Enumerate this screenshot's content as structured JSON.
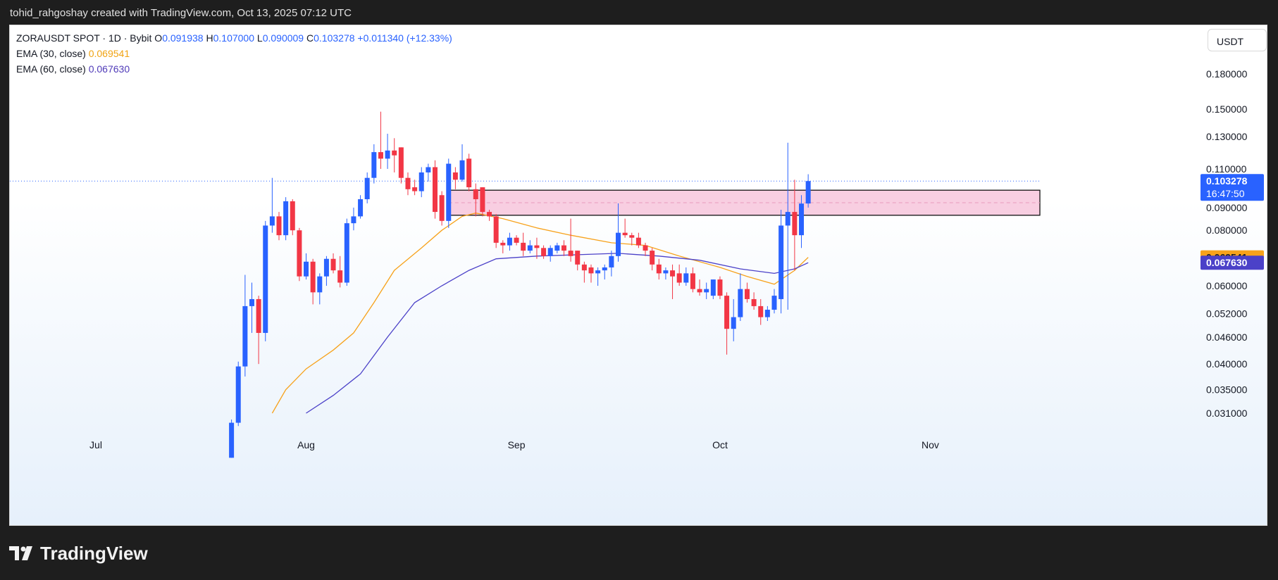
{
  "caption": "tohid_rahgoshay created with TradingView.com, Oct 13, 2025 07:12 UTC",
  "brand": "TradingView",
  "currency_button": "USDT",
  "legend": {
    "symbol": "ZORAUSDT SPOT · 1D · Bybit",
    "o_label": "O",
    "o_value": "0.091938",
    "h_label": "H",
    "h_value": "0.107000",
    "l_label": "L",
    "l_value": "0.090009",
    "c_label": "C",
    "c_value": "0.103278",
    "change": "+0.011340 (+12.33%)",
    "ema30_label": "EMA (30, close)",
    "ema30_value": "0.069541",
    "ema60_label": "EMA (60, close)",
    "ema60_value": "0.067630"
  },
  "colors": {
    "up": "#2962ff",
    "down": "#f23645",
    "ema30": "#f7a21b",
    "ema60": "#4b41c8",
    "zone_fill": "#f7c6dc"
  },
  "chart_data": {
    "type": "candlestick",
    "symbol": "ZORAUSDT SPOT",
    "timeframe": "1D",
    "exchange": "Bybit",
    "y_scale": "log",
    "y_ticks": [
      "0.180000",
      "0.150000",
      "0.130000",
      "0.110000",
      "0.090000",
      "0.080000",
      "0.060000",
      "0.052000",
      "0.046000",
      "0.040000",
      "0.035000",
      "0.031000"
    ],
    "x_ticks": [
      "Jul",
      "Aug",
      "Sep",
      "Oct",
      "Nov"
    ],
    "last_price_label": "0.103278",
    "countdown_label": "16:47:50",
    "ema30_label": "0.069541",
    "ema60_label": "0.067630",
    "zone": {
      "start": "2025-08-22",
      "end": "2025-11-21",
      "low": 0.0865,
      "high": 0.0985
    },
    "candles": [
      {
        "d": "2025-07-21",
        "o": 0.0246,
        "h": 0.03,
        "l": 0.0246,
        "c": 0.0295
      },
      {
        "d": "2025-07-22",
        "o": 0.0295,
        "h": 0.0405,
        "l": 0.029,
        "c": 0.0395
      },
      {
        "d": "2025-07-23",
        "o": 0.0395,
        "h": 0.0635,
        "l": 0.0375,
        "c": 0.054
      },
      {
        "d": "2025-07-24",
        "o": 0.054,
        "h": 0.061,
        "l": 0.047,
        "c": 0.056
      },
      {
        "d": "2025-07-25",
        "o": 0.056,
        "h": 0.057,
        "l": 0.04,
        "c": 0.047
      },
      {
        "d": "2025-07-26",
        "o": 0.047,
        "h": 0.084,
        "l": 0.045,
        "c": 0.082
      },
      {
        "d": "2025-07-27",
        "o": 0.082,
        "h": 0.105,
        "l": 0.079,
        "c": 0.086
      },
      {
        "d": "2025-07-28",
        "o": 0.086,
        "h": 0.088,
        "l": 0.076,
        "c": 0.078
      },
      {
        "d": "2025-07-29",
        "o": 0.078,
        "h": 0.095,
        "l": 0.076,
        "c": 0.093
      },
      {
        "d": "2025-07-30",
        "o": 0.093,
        "h": 0.094,
        "l": 0.078,
        "c": 0.08
      },
      {
        "d": "2025-07-31",
        "o": 0.08,
        "h": 0.081,
        "l": 0.0615,
        "c": 0.063
      },
      {
        "d": "2025-08-01",
        "o": 0.063,
        "h": 0.071,
        "l": 0.062,
        "c": 0.068
      },
      {
        "d": "2025-08-02",
        "o": 0.068,
        "h": 0.069,
        "l": 0.0545,
        "c": 0.058
      },
      {
        "d": "2025-08-03",
        "o": 0.058,
        "h": 0.064,
        "l": 0.0545,
        "c": 0.063
      },
      {
        "d": "2025-08-04",
        "o": 0.063,
        "h": 0.07,
        "l": 0.06,
        "c": 0.069
      },
      {
        "d": "2025-08-05",
        "o": 0.069,
        "h": 0.071,
        "l": 0.064,
        "c": 0.065
      },
      {
        "d": "2025-08-06",
        "o": 0.065,
        "h": 0.07,
        "l": 0.0595,
        "c": 0.061
      },
      {
        "d": "2025-08-07",
        "o": 0.061,
        "h": 0.085,
        "l": 0.06,
        "c": 0.083
      },
      {
        "d": "2025-08-08",
        "o": 0.083,
        "h": 0.09,
        "l": 0.08,
        "c": 0.086
      },
      {
        "d": "2025-08-09",
        "o": 0.086,
        "h": 0.096,
        "l": 0.085,
        "c": 0.094
      },
      {
        "d": "2025-08-10",
        "o": 0.094,
        "h": 0.108,
        "l": 0.092,
        "c": 0.105
      },
      {
        "d": "2025-08-11",
        "o": 0.105,
        "h": 0.125,
        "l": 0.102,
        "c": 0.12
      },
      {
        "d": "2025-08-12",
        "o": 0.12,
        "h": 0.148,
        "l": 0.11,
        "c": 0.116
      },
      {
        "d": "2025-08-13",
        "o": 0.116,
        "h": 0.132,
        "l": 0.11,
        "c": 0.121
      },
      {
        "d": "2025-08-14",
        "o": 0.121,
        "h": 0.129,
        "l": 0.108,
        "c": 0.118
      },
      {
        "d": "2025-08-15",
        "o": 0.123,
        "h": 0.123,
        "l": 0.102,
        "c": 0.105
      },
      {
        "d": "2025-08-16",
        "o": 0.105,
        "h": 0.108,
        "l": 0.096,
        "c": 0.099
      },
      {
        "d": "2025-08-17",
        "o": 0.1,
        "h": 0.104,
        "l": 0.096,
        "c": 0.098
      },
      {
        "d": "2025-08-18",
        "o": 0.098,
        "h": 0.111,
        "l": 0.095,
        "c": 0.108
      },
      {
        "d": "2025-08-19",
        "o": 0.108,
        "h": 0.113,
        "l": 0.103,
        "c": 0.111
      },
      {
        "d": "2025-08-20",
        "o": 0.111,
        "h": 0.115,
        "l": 0.085,
        "c": 0.088
      },
      {
        "d": "2025-08-21",
        "o": 0.096,
        "h": 0.098,
        "l": 0.082,
        "c": 0.084
      },
      {
        "d": "2025-08-22",
        "o": 0.084,
        "h": 0.116,
        "l": 0.081,
        "c": 0.113
      },
      {
        "d": "2025-08-23",
        "o": 0.108,
        "h": 0.111,
        "l": 0.099,
        "c": 0.104
      },
      {
        "d": "2025-08-24",
        "o": 0.104,
        "h": 0.125,
        "l": 0.103,
        "c": 0.115
      },
      {
        "d": "2025-08-25",
        "o": 0.116,
        "h": 0.119,
        "l": 0.098,
        "c": 0.1
      },
      {
        "d": "2025-08-26",
        "o": 0.099,
        "h": 0.102,
        "l": 0.086,
        "c": 0.094
      },
      {
        "d": "2025-08-27",
        "o": 0.1,
        "h": 0.1,
        "l": 0.086,
        "c": 0.088
      },
      {
        "d": "2025-08-28",
        "o": 0.088,
        "h": 0.089,
        "l": 0.084,
        "c": 0.086
      },
      {
        "d": "2025-08-29",
        "o": 0.086,
        "h": 0.087,
        "l": 0.073,
        "c": 0.075
      },
      {
        "d": "2025-08-30",
        "o": 0.075,
        "h": 0.076,
        "l": 0.071,
        "c": 0.074
      },
      {
        "d": "2025-08-31",
        "o": 0.074,
        "h": 0.079,
        "l": 0.072,
        "c": 0.077
      },
      {
        "d": "2025-09-01",
        "o": 0.077,
        "h": 0.078,
        "l": 0.074,
        "c": 0.075
      },
      {
        "d": "2025-09-02",
        "o": 0.075,
        "h": 0.079,
        "l": 0.07,
        "c": 0.072
      },
      {
        "d": "2025-09-03",
        "o": 0.072,
        "h": 0.076,
        "l": 0.071,
        "c": 0.074
      },
      {
        "d": "2025-09-04",
        "o": 0.074,
        "h": 0.077,
        "l": 0.069,
        "c": 0.073
      },
      {
        "d": "2025-09-05",
        "o": 0.073,
        "h": 0.074,
        "l": 0.069,
        "c": 0.07
      },
      {
        "d": "2025-09-06",
        "o": 0.07,
        "h": 0.074,
        "l": 0.068,
        "c": 0.073
      },
      {
        "d": "2025-09-07",
        "o": 0.072,
        "h": 0.075,
        "l": 0.071,
        "c": 0.074
      },
      {
        "d": "2025-09-08",
        "o": 0.074,
        "h": 0.076,
        "l": 0.07,
        "c": 0.072
      },
      {
        "d": "2025-09-09",
        "o": 0.072,
        "h": 0.085,
        "l": 0.068,
        "c": 0.07
      },
      {
        "d": "2025-09-10",
        "o": 0.072,
        "h": 0.072,
        "l": 0.065,
        "c": 0.067
      },
      {
        "d": "2025-09-11",
        "o": 0.067,
        "h": 0.068,
        "l": 0.061,
        "c": 0.065
      },
      {
        "d": "2025-09-12",
        "o": 0.066,
        "h": 0.067,
        "l": 0.061,
        "c": 0.064
      },
      {
        "d": "2025-09-13",
        "o": 0.064,
        "h": 0.066,
        "l": 0.06,
        "c": 0.065
      },
      {
        "d": "2025-09-14",
        "o": 0.065,
        "h": 0.067,
        "l": 0.062,
        "c": 0.066
      },
      {
        "d": "2025-09-15",
        "o": 0.066,
        "h": 0.072,
        "l": 0.063,
        "c": 0.07
      },
      {
        "d": "2025-09-16",
        "o": 0.07,
        "h": 0.092,
        "l": 0.068,
        "c": 0.079
      },
      {
        "d": "2025-09-17",
        "o": 0.079,
        "h": 0.085,
        "l": 0.077,
        "c": 0.078
      },
      {
        "d": "2025-09-18",
        "o": 0.078,
        "h": 0.079,
        "l": 0.074,
        "c": 0.077
      },
      {
        "d": "2025-09-19",
        "o": 0.077,
        "h": 0.079,
        "l": 0.073,
        "c": 0.074
      },
      {
        "d": "2025-09-20",
        "o": 0.074,
        "h": 0.075,
        "l": 0.07,
        "c": 0.072
      },
      {
        "d": "2025-09-21",
        "o": 0.072,
        "h": 0.073,
        "l": 0.065,
        "c": 0.067
      },
      {
        "d": "2025-09-22",
        "o": 0.067,
        "h": 0.069,
        "l": 0.062,
        "c": 0.064
      },
      {
        "d": "2025-09-23",
        "o": 0.064,
        "h": 0.066,
        "l": 0.062,
        "c": 0.065
      },
      {
        "d": "2025-09-24",
        "o": 0.065,
        "h": 0.067,
        "l": 0.056,
        "c": 0.063
      },
      {
        "d": "2025-09-25",
        "o": 0.064,
        "h": 0.067,
        "l": 0.06,
        "c": 0.061
      },
      {
        "d": "2025-09-26",
        "o": 0.061,
        "h": 0.066,
        "l": 0.06,
        "c": 0.064
      },
      {
        "d": "2025-09-27",
        "o": 0.064,
        "h": 0.066,
        "l": 0.058,
        "c": 0.059
      },
      {
        "d": "2025-09-28",
        "o": 0.059,
        "h": 0.062,
        "l": 0.057,
        "c": 0.058
      },
      {
        "d": "2025-09-29",
        "o": 0.058,
        "h": 0.061,
        "l": 0.056,
        "c": 0.059
      },
      {
        "d": "2025-09-30",
        "o": 0.057,
        "h": 0.062,
        "l": 0.056,
        "c": 0.062
      },
      {
        "d": "2025-10-01",
        "o": 0.062,
        "h": 0.063,
        "l": 0.056,
        "c": 0.057
      },
      {
        "d": "2025-10-02",
        "o": 0.057,
        "h": 0.058,
        "l": 0.042,
        "c": 0.048
      },
      {
        "d": "2025-10-03",
        "o": 0.048,
        "h": 0.056,
        "l": 0.045,
        "c": 0.051
      },
      {
        "d": "2025-10-04",
        "o": 0.051,
        "h": 0.064,
        "l": 0.05,
        "c": 0.059
      },
      {
        "d": "2025-10-05",
        "o": 0.059,
        "h": 0.061,
        "l": 0.055,
        "c": 0.056
      },
      {
        "d": "2025-10-06",
        "o": 0.056,
        "h": 0.058,
        "l": 0.053,
        "c": 0.054
      },
      {
        "d": "2025-10-07",
        "o": 0.054,
        "h": 0.056,
        "l": 0.049,
        "c": 0.051
      },
      {
        "d": "2025-10-08",
        "o": 0.051,
        "h": 0.054,
        "l": 0.05,
        "c": 0.053
      },
      {
        "d": "2025-10-09",
        "o": 0.053,
        "h": 0.059,
        "l": 0.052,
        "c": 0.057
      },
      {
        "d": "2025-10-10",
        "o": 0.056,
        "h": 0.089,
        "l": 0.052,
        "c": 0.082
      },
      {
        "d": "2025-10-11",
        "o": 0.082,
        "h": 0.126,
        "l": 0.053,
        "c": 0.088
      },
      {
        "d": "2025-10-12",
        "o": 0.088,
        "h": 0.104,
        "l": 0.065,
        "c": 0.078
      },
      {
        "d": "2025-10-13",
        "o": 0.078,
        "h": 0.096,
        "l": 0.073,
        "c": 0.0919
      },
      {
        "d": "2025-10-14",
        "o": 0.091938,
        "h": 0.107,
        "l": 0.090009,
        "c": 0.103278
      }
    ],
    "ema30": [
      {
        "d": "2025-07-27",
        "v": 0.031
      },
      {
        "d": "2025-07-29",
        "v": 0.035
      },
      {
        "d": "2025-08-01",
        "v": 0.039
      },
      {
        "d": "2025-08-05",
        "v": 0.043
      },
      {
        "d": "2025-08-08",
        "v": 0.047
      },
      {
        "d": "2025-08-11",
        "v": 0.055
      },
      {
        "d": "2025-08-14",
        "v": 0.065
      },
      {
        "d": "2025-08-18",
        "v": 0.073
      },
      {
        "d": "2025-08-21",
        "v": 0.08
      },
      {
        "d": "2025-08-24",
        "v": 0.086
      },
      {
        "d": "2025-08-26",
        "v": 0.0875
      },
      {
        "d": "2025-08-30",
        "v": 0.085
      },
      {
        "d": "2025-09-04",
        "v": 0.081
      },
      {
        "d": "2025-09-09",
        "v": 0.078
      },
      {
        "d": "2025-09-15",
        "v": 0.075
      },
      {
        "d": "2025-09-20",
        "v": 0.074
      },
      {
        "d": "2025-09-25",
        "v": 0.07
      },
      {
        "d": "2025-10-01",
        "v": 0.066
      },
      {
        "d": "2025-10-05",
        "v": 0.063
      },
      {
        "d": "2025-10-09",
        "v": 0.0605
      },
      {
        "d": "2025-10-12",
        "v": 0.065
      },
      {
        "d": "2025-10-14",
        "v": 0.069541
      }
    ],
    "ema60": [
      {
        "d": "2025-08-01",
        "v": 0.031
      },
      {
        "d": "2025-08-05",
        "v": 0.034
      },
      {
        "d": "2025-08-09",
        "v": 0.038
      },
      {
        "d": "2025-08-13",
        "v": 0.046
      },
      {
        "d": "2025-08-17",
        "v": 0.055
      },
      {
        "d": "2025-08-21",
        "v": 0.06
      },
      {
        "d": "2025-08-25",
        "v": 0.065
      },
      {
        "d": "2025-08-29",
        "v": 0.069
      },
      {
        "d": "2025-09-04",
        "v": 0.07
      },
      {
        "d": "2025-09-10",
        "v": 0.0705
      },
      {
        "d": "2025-09-16",
        "v": 0.071
      },
      {
        "d": "2025-09-22",
        "v": 0.07
      },
      {
        "d": "2025-09-28",
        "v": 0.0685
      },
      {
        "d": "2025-10-04",
        "v": 0.0655
      },
      {
        "d": "2025-10-09",
        "v": 0.064
      },
      {
        "d": "2025-10-12",
        "v": 0.0655
      },
      {
        "d": "2025-10-14",
        "v": 0.06763
      }
    ]
  }
}
